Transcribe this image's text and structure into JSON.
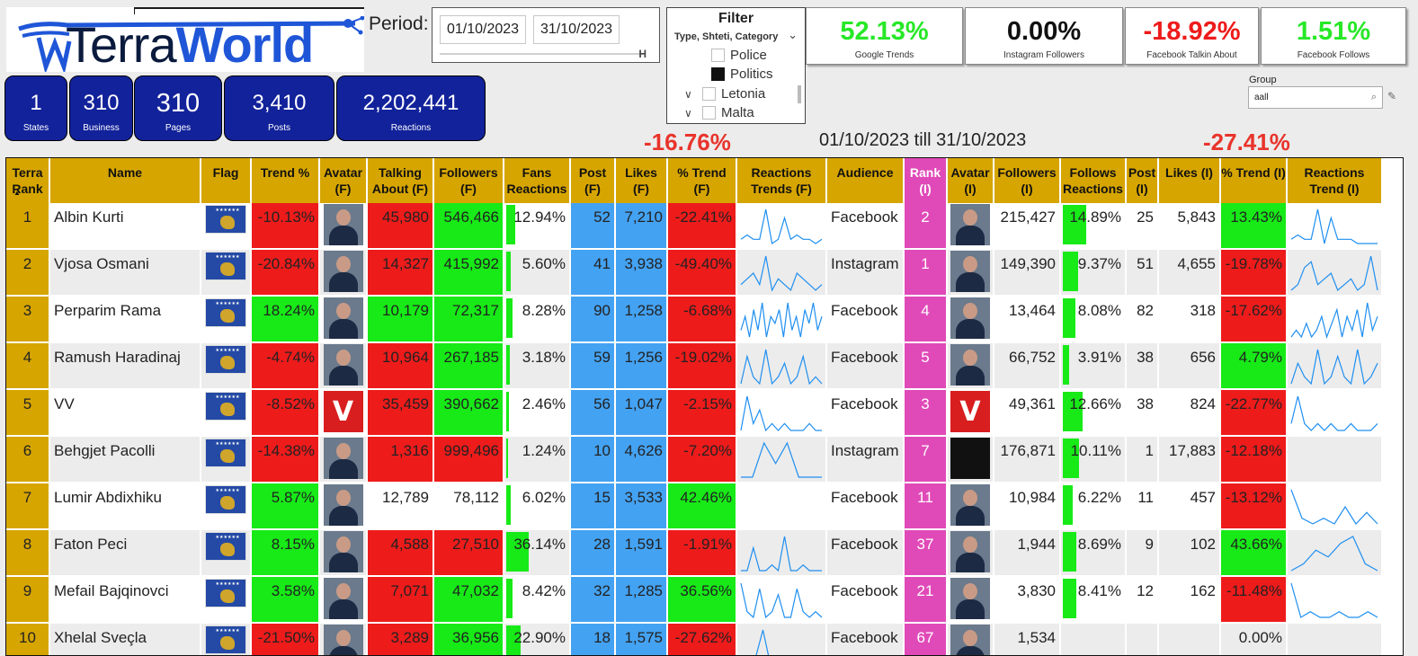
{
  "logo": {
    "part1": "Terra",
    "part2": "World"
  },
  "period": {
    "label": "Period:",
    "start": "01/10/2023",
    "end": "31/10/2023"
  },
  "filter": {
    "title": "Filter",
    "subtitle": "Type, Shteti, Category",
    "items": [
      {
        "label": "Police",
        "checked": false,
        "expandable": false
      },
      {
        "label": "Politics",
        "checked": true,
        "expandable": false
      },
      {
        "label": "Letonia",
        "checked": false,
        "expandable": true
      },
      {
        "label": "Malta",
        "checked": false,
        "expandable": true
      }
    ]
  },
  "kpis": [
    {
      "value": "52.13%",
      "label": "Google Trends",
      "color": "#27e827"
    },
    {
      "value": "0.00%",
      "label": "Instagram Followers",
      "color": "#111111"
    },
    {
      "value": "-18.92%",
      "label": "Facebook Talkin About",
      "color": "#ee1b1b"
    },
    {
      "value": "1.51%",
      "label": "Facebook Follows",
      "color": "#27e827"
    }
  ],
  "group": {
    "label": "Group",
    "value": "aall"
  },
  "stats": [
    {
      "value": "1",
      "caption": "States"
    },
    {
      "value": "310",
      "caption": "Business"
    },
    {
      "value": "310",
      "caption": "Pages"
    },
    {
      "value": "3,410",
      "caption": "Posts"
    },
    {
      "value": "2,202,441",
      "caption": "Reactions"
    }
  ],
  "summary": {
    "left_trend": "-16.76%",
    "range": "01/10/2023 till 31/10/2023",
    "right_trend": "-27.41%"
  },
  "table": {
    "headers": [
      "Terra Rank",
      "Name",
      "Flag",
      "Trend %",
      "Avatar (F)",
      "Talking About (F)",
      "Followers (F)",
      "Fans Reactions",
      "Post (F)",
      "Likes (F)",
      "% Trend (F)",
      "Reactions Trends (F)",
      "Audience",
      "Rank (I)",
      "Avatar (I)",
      "Followers (I)",
      "Follows Reactions",
      "Post (I)",
      "Likes (I)",
      "% Trend (I)",
      "Reactions Trend (I)"
    ],
    "rows": [
      {
        "rank": "1",
        "name": "Albin Kurti",
        "trend": "-10.13%",
        "trend_c": "red",
        "talking": "45,980",
        "talking_c": "red",
        "followers_f": "546,466",
        "followers_f_c": "green",
        "fans_react": "12.94%",
        "fans_react_pct": 12.94,
        "post_f": "52",
        "likes_f": "7,210",
        "pct_trend_f": "-22.41%",
        "pct_trend_f_c": "red",
        "audience": "Facebook",
        "rank_i": "2",
        "avatar_f": "person",
        "avatar_i": "person",
        "followers_i": "215,427",
        "follows_react": "14.89%",
        "follows_react_pct": 14.89,
        "post_i": "25",
        "likes_i": "5,843",
        "pct_trend_i": "13.43%",
        "pct_trend_i_c": "green",
        "spark_f": [
          2,
          3,
          2,
          2,
          9,
          1,
          2,
          7,
          2,
          3,
          2,
          2,
          1,
          2
        ],
        "spark_i": [
          2,
          3,
          2,
          2,
          9,
          1,
          7,
          2,
          2,
          2,
          1,
          1,
          1,
          1
        ]
      },
      {
        "rank": "2",
        "name": "Vjosa Osmani",
        "trend": "-20.84%",
        "trend_c": "red",
        "talking": "14,327",
        "talking_c": "red",
        "followers_f": "415,992",
        "followers_f_c": "green",
        "fans_react": "5.60%",
        "fans_react_pct": 5.6,
        "post_f": "41",
        "likes_f": "3,938",
        "pct_trend_f": "-49.40%",
        "pct_trend_f_c": "red",
        "audience": "Instagram",
        "rank_i": "1",
        "avatar_f": "person",
        "avatar_i": "person",
        "followers_i": "149,390",
        "follows_react": "9.37%",
        "follows_react_pct": 9.37,
        "post_i": "51",
        "likes_i": "4,655",
        "pct_trend_i": "-19.78%",
        "pct_trend_i_c": "red",
        "spark_f": [
          3,
          4,
          5,
          3,
          8,
          2,
          4,
          3,
          2,
          5,
          4,
          3,
          2,
          3
        ],
        "spark_i": [
          2,
          3,
          6,
          7,
          3,
          4,
          5,
          2,
          3,
          4,
          2,
          3,
          8,
          2
        ]
      },
      {
        "rank": "3",
        "name": "Perparim Rama",
        "trend": "18.24%",
        "trend_c": "green",
        "talking": "10,179",
        "talking_c": "green",
        "followers_f": "72,317",
        "followers_f_c": "green",
        "fans_react": "8.28%",
        "fans_react_pct": 8.28,
        "post_f": "90",
        "likes_f": "1,258",
        "pct_trend_f": "-6.68%",
        "pct_trend_f_c": "red",
        "audience": "Facebook",
        "rank_i": "4",
        "avatar_f": "person",
        "avatar_i": "person",
        "followers_i": "13,464",
        "follows_react": "8.08%",
        "follows_react_pct": 8.08,
        "post_i": "82",
        "likes_i": "318",
        "pct_trend_i": "-17.62%",
        "pct_trend_i_c": "red",
        "spark_f": [
          3,
          5,
          2,
          6,
          3,
          7,
          2,
          5,
          4,
          6,
          2,
          7,
          3,
          5,
          2,
          6,
          4,
          7,
          3,
          5
        ],
        "spark_i": [
          2,
          3,
          2,
          4,
          2,
          3,
          5,
          2,
          4,
          6,
          2,
          5,
          3,
          6,
          2,
          7,
          3,
          5
        ]
      },
      {
        "rank": "4",
        "name": "Ramush Haradinaj",
        "trend": "-4.74%",
        "trend_c": "red",
        "talking": "10,964",
        "talking_c": "red",
        "followers_f": "267,185",
        "followers_f_c": "green",
        "fans_react": "3.18%",
        "fans_react_pct": 3.18,
        "post_f": "59",
        "likes_f": "1,256",
        "pct_trend_f": "-19.02%",
        "pct_trend_f_c": "red",
        "audience": "Facebook",
        "rank_i": "5",
        "avatar_f": "person",
        "avatar_i": "person",
        "followers_i": "66,752",
        "follows_react": "3.91%",
        "follows_react_pct": 3.91,
        "post_i": "38",
        "likes_i": "656",
        "pct_trend_i": "4.79%",
        "pct_trend_i_c": "green",
        "spark_f": [
          2,
          6,
          3,
          2,
          7,
          2,
          3,
          5,
          2,
          3,
          6,
          2,
          3,
          2
        ],
        "spark_i": [
          2,
          5,
          3,
          2,
          7,
          2,
          3,
          6,
          3,
          2,
          7,
          2,
          3,
          5
        ]
      },
      {
        "rank": "5",
        "name": "VV",
        "trend": "-8.52%",
        "trend_c": "red",
        "talking": "35,459",
        "talking_c": "red",
        "followers_f": "390,662",
        "followers_f_c": "green",
        "fans_react": "2.46%",
        "fans_react_pct": 2.46,
        "post_f": "56",
        "likes_f": "1,047",
        "pct_trend_f": "-2.15%",
        "pct_trend_f_c": "red",
        "audience": "Facebook",
        "rank_i": "3",
        "avatar_f": "v",
        "avatar_i": "v",
        "followers_i": "49,361",
        "follows_react": "12.66%",
        "follows_react_pct": 12.66,
        "post_i": "38",
        "likes_i": "824",
        "pct_trend_i": "-22.77%",
        "pct_trend_i_c": "red",
        "spark_f": [
          2,
          7,
          3,
          5,
          2,
          3,
          2,
          3,
          2,
          2,
          2,
          3,
          2,
          2
        ],
        "spark_i": [
          3,
          7,
          3,
          2,
          3,
          2,
          3,
          2,
          2,
          3,
          2,
          2,
          2,
          3
        ]
      },
      {
        "rank": "6",
        "name": "Behgjet Pacolli",
        "trend": "-14.38%",
        "trend_c": "red",
        "talking": "1,316",
        "talking_c": "red",
        "followers_f": "999,496",
        "followers_f_c": "red",
        "fans_react": "1.24%",
        "fans_react_pct": 1.24,
        "post_f": "10",
        "likes_f": "4,626",
        "pct_trend_f": "-7.20%",
        "pct_trend_f_c": "red",
        "audience": "Instagram",
        "rank_i": "7",
        "avatar_f": "person",
        "avatar_i": "sig",
        "followers_i": "176,871",
        "follows_react": "10.11%",
        "follows_react_pct": 10.11,
        "post_i": "1",
        "likes_i": "17,883",
        "pct_trend_i": "-12.18%",
        "pct_trend_i_c": "red",
        "spark_f": [
          2,
          2,
          7,
          4,
          7,
          2,
          2,
          2
        ],
        "spark_i": []
      },
      {
        "rank": "7",
        "name": "Lumir Abdixhiku",
        "trend": "5.87%",
        "trend_c": "green",
        "talking": "12,789",
        "talking_c": "white",
        "followers_f": "78,112",
        "followers_f_c": "white",
        "fans_react": "6.02%",
        "fans_react_pct": 6.02,
        "post_f": "15",
        "likes_f": "3,533",
        "pct_trend_f": "42.46%",
        "pct_trend_f_c": "green",
        "audience": "Facebook",
        "rank_i": "11",
        "avatar_f": "person",
        "avatar_i": "person",
        "followers_i": "10,984",
        "follows_react": "6.22%",
        "follows_react_pct": 6.22,
        "post_i": "11",
        "likes_i": "457",
        "pct_trend_i": "-13.12%",
        "pct_trend_i_c": "red",
        "spark_f": [],
        "spark_i": [
          8,
          3,
          2,
          3,
          2,
          5,
          2,
          4,
          2
        ]
      },
      {
        "rank": "8",
        "name": "Faton Peci",
        "trend": "8.15%",
        "trend_c": "green",
        "talking": "4,588",
        "talking_c": "red",
        "followers_f": "27,510",
        "followers_f_c": "red",
        "fans_react": "36.14%",
        "fans_react_pct": 36.14,
        "post_f": "28",
        "likes_f": "1,591",
        "pct_trend_f": "-1.91%",
        "pct_trend_f_c": "red",
        "audience": "Facebook",
        "rank_i": "37",
        "avatar_f": "person",
        "avatar_i": "person",
        "followers_i": "1,944",
        "follows_react": "8.69%",
        "follows_react_pct": 8.69,
        "post_i": "9",
        "likes_i": "102",
        "pct_trend_i": "43.66%",
        "pct_trend_i_c": "green",
        "spark_f": [
          2,
          2,
          6,
          2,
          2,
          3,
          2,
          8,
          2,
          2,
          3,
          2,
          2,
          2
        ],
        "spark_i": [
          2,
          3,
          5,
          4,
          6,
          7,
          3,
          2
        ]
      },
      {
        "rank": "9",
        "name": "Mefail Bajqinovci",
        "trend": "3.58%",
        "trend_c": "green",
        "talking": "7,071",
        "talking_c": "red",
        "followers_f": "47,032",
        "followers_f_c": "green",
        "fans_react": "8.42%",
        "fans_react_pct": 8.42,
        "post_f": "32",
        "likes_f": "1,285",
        "pct_trend_f": "36.56%",
        "pct_trend_f_c": "green",
        "audience": "Facebook",
        "rank_i": "21",
        "avatar_f": "person",
        "avatar_i": "person",
        "followers_i": "3,830",
        "follows_react": "8.41%",
        "follows_react_pct": 8.41,
        "post_i": "12",
        "likes_i": "162",
        "pct_trend_i": "-11.48%",
        "pct_trend_i_c": "red",
        "spark_f": [
          8,
          3,
          2,
          7,
          2,
          3,
          6,
          2,
          2,
          7,
          3,
          2,
          3,
          2
        ],
        "spark_i": [
          8,
          2,
          3,
          2,
          2,
          3,
          2,
          2,
          3,
          2
        ]
      },
      {
        "rank": "10",
        "name": "Xhelal Sveçla",
        "trend": "-21.50%",
        "trend_c": "red",
        "talking": "3,289",
        "talking_c": "red",
        "followers_f": "36,956",
        "followers_f_c": "green",
        "fans_react": "22.90%",
        "fans_react_pct": 22.9,
        "post_f": "18",
        "likes_f": "1,575",
        "pct_trend_f": "-27.62%",
        "pct_trend_f_c": "red",
        "audience": "Facebook",
        "rank_i": "67",
        "avatar_f": "person",
        "avatar_i": "person",
        "followers_i": "1,534",
        "follows_react": "",
        "follows_react_pct": 0,
        "post_i": "",
        "likes_i": "",
        "pct_trend_i": "0.00%",
        "pct_trend_i_c": "white",
        "spark_f": [
          2,
          2,
          3,
          7,
          2,
          2,
          3,
          2,
          2,
          3,
          2,
          2
        ],
        "spark_i": []
      }
    ]
  },
  "colors": {
    "header": "#d6a500",
    "rank_i": "#e04ab8",
    "blue": "#44a2f2",
    "red": "#ee1b1b",
    "green": "#17ea17",
    "stat": "#12229a"
  }
}
